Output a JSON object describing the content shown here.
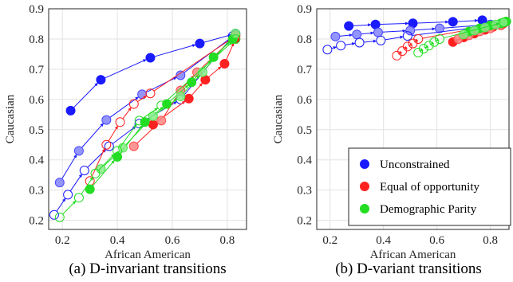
{
  "figure": {
    "colors": {
      "unconstrained": "#1a1aff",
      "equal_opportunity": "#ff2020",
      "demographic_parity": "#22dd22"
    }
  },
  "chart_data": [
    {
      "type": "scatter",
      "caption": "(a) D-invariant transitions",
      "xlabel": "African American",
      "ylabel": "Caucasian",
      "xlim": [
        0.15,
        0.87
      ],
      "ylim": [
        0.17,
        0.9
      ],
      "xticks": [
        "0.2",
        "0.4",
        "0.6",
        "0.8"
      ],
      "yticks": [
        "0.2",
        "0.3",
        "0.4",
        "0.5",
        "0.6",
        "0.7",
        "0.8",
        "0.9"
      ],
      "grid": true,
      "legend": null,
      "series": [
        {
          "key": "unconstrained",
          "trajectories": [
            {
              "marker": "filled",
              "points": [
                [
                  0.23,
                  0.563
                ],
                [
                  0.34,
                  0.665
                ],
                [
                  0.52,
                  0.738
                ],
                [
                  0.7,
                  0.785
                ],
                [
                  0.83,
                  0.818
                ]
              ]
            },
            {
              "marker": "light",
              "points": [
                [
                  0.19,
                  0.325
                ],
                [
                  0.26,
                  0.43
                ],
                [
                  0.36,
                  0.532
                ],
                [
                  0.49,
                  0.617
                ],
                [
                  0.63,
                  0.68
                ],
                [
                  0.83,
                  0.815
                ]
              ]
            },
            {
              "marker": "hollow",
              "points": [
                [
                  0.17,
                  0.218
                ],
                [
                  0.22,
                  0.285
                ],
                [
                  0.28,
                  0.365
                ],
                [
                  0.37,
                  0.445
                ],
                [
                  0.48,
                  0.52
                ],
                [
                  0.63,
                  0.6
                ],
                [
                  0.82,
                  0.81
                ]
              ]
            }
          ]
        },
        {
          "key": "equal_opportunity",
          "trajectories": [
            {
              "marker": "filled",
              "points": [
                [
                  0.53,
                  0.517
                ],
                [
                  0.66,
                  0.603
                ],
                [
                  0.72,
                  0.665
                ],
                [
                  0.79,
                  0.718
                ],
                [
                  0.83,
                  0.8
                ]
              ]
            },
            {
              "marker": "light",
              "points": [
                [
                  0.46,
                  0.445
                ],
                [
                  0.56,
                  0.53
                ],
                [
                  0.63,
                  0.63
                ],
                [
                  0.69,
                  0.69
                ],
                [
                  0.83,
                  0.81
                ]
              ]
            },
            {
              "marker": "hollow",
              "points": [
                [
                  0.3,
                  0.33
                ],
                [
                  0.36,
                  0.45
                ],
                [
                  0.41,
                  0.525
                ],
                [
                  0.46,
                  0.585
                ],
                [
                  0.52,
                  0.62
                ],
                [
                  0.83,
                  0.81
                ]
              ]
            }
          ]
        },
        {
          "key": "demographic_parity",
          "trajectories": [
            {
              "marker": "filled",
              "points": [
                [
                  0.3,
                  0.303
                ],
                [
                  0.4,
                  0.41
                ],
                [
                  0.5,
                  0.525
                ],
                [
                  0.58,
                  0.585
                ],
                [
                  0.67,
                  0.657
                ],
                [
                  0.75,
                  0.74
                ],
                [
                  0.82,
                  0.8
                ]
              ]
            },
            {
              "marker": "light",
              "points": [
                [
                  0.34,
                  0.37
                ],
                [
                  0.42,
                  0.44
                ],
                [
                  0.53,
                  0.545
                ],
                [
                  0.63,
                  0.61
                ],
                [
                  0.71,
                  0.69
                ],
                [
                  0.83,
                  0.818
                ]
              ]
            },
            {
              "marker": "hollow",
              "points": [
                [
                  0.19,
                  0.21
                ],
                [
                  0.26,
                  0.275
                ],
                [
                  0.32,
                  0.355
                ],
                [
                  0.4,
                  0.43
                ],
                [
                  0.48,
                  0.53
                ],
                [
                  0.56,
                  0.58
                ],
                [
                  0.83,
                  0.8
                ]
              ]
            }
          ]
        }
      ]
    },
    {
      "type": "scatter",
      "caption": "(b) D-variant transitions",
      "xlabel": "African American",
      "ylabel": "Caucasian",
      "xlim": [
        0.15,
        0.87
      ],
      "ylim": [
        0.17,
        0.9
      ],
      "xticks": [
        "0.2",
        "0.4",
        "0.6",
        "0.8"
      ],
      "yticks": [
        "0.2",
        "0.3",
        "0.4",
        "0.5",
        "0.6",
        "0.7",
        "0.8",
        "0.9"
      ],
      "grid": true,
      "legend": {
        "placement": "bottom-right",
        "entries": [
          {
            "key": "unconstrained",
            "label": "Unconstrained"
          },
          {
            "key": "equal_opportunity",
            "label": "Equal of opportunity"
          },
          {
            "key": "demographic_parity",
            "label": "Demographic Parity"
          }
        ]
      },
      "series": [
        {
          "key": "unconstrained",
          "trajectories": [
            {
              "marker": "filled",
              "points": [
                [
                  0.27,
                  0.843
                ],
                [
                  0.37,
                  0.848
                ],
                [
                  0.51,
                  0.852
                ],
                [
                  0.66,
                  0.857
                ],
                [
                  0.77,
                  0.862
                ]
              ]
            },
            {
              "marker": "light",
              "points": [
                [
                  0.22,
                  0.808
                ],
                [
                  0.3,
                  0.815
                ],
                [
                  0.38,
                  0.822
                ],
                [
                  0.5,
                  0.828
                ],
                [
                  0.61,
                  0.835
                ],
                [
                  0.8,
                  0.848
                ]
              ]
            },
            {
              "marker": "hollow",
              "points": [
                [
                  0.19,
                  0.765
                ],
                [
                  0.24,
                  0.778
                ],
                [
                  0.31,
                  0.788
                ],
                [
                  0.39,
                  0.795
                ],
                [
                  0.49,
                  0.81
                ],
                [
                  0.81,
                  0.845
                ]
              ]
            }
          ]
        },
        {
          "key": "equal_opportunity",
          "trajectories": [
            {
              "marker": "filled",
              "points": [
                [
                  0.66,
                  0.79
                ],
                [
                  0.7,
                  0.805
                ],
                [
                  0.74,
                  0.818
                ],
                [
                  0.78,
                  0.83
                ],
                [
                  0.81,
                  0.84
                ],
                [
                  0.84,
                  0.848
                ]
              ]
            },
            {
              "marker": "light",
              "points": [
                [
                  0.68,
                  0.8
                ],
                [
                  0.72,
                  0.812
                ],
                [
                  0.76,
                  0.825
                ],
                [
                  0.8,
                  0.835
                ],
                [
                  0.84,
                  0.845
                ]
              ]
            },
            {
              "marker": "hollow",
              "points": [
                [
                  0.45,
                  0.745
                ],
                [
                  0.47,
                  0.76
                ],
                [
                  0.49,
                  0.775
                ],
                [
                  0.51,
                  0.785
                ],
                [
                  0.53,
                  0.8
                ],
                [
                  0.85,
                  0.852
                ]
              ]
            }
          ]
        },
        {
          "key": "demographic_parity",
          "trajectories": [
            {
              "marker": "filled",
              "points": [
                [
                  0.72,
                  0.825
                ],
                [
                  0.76,
                  0.835
                ],
                [
                  0.8,
                  0.845
                ],
                [
                  0.84,
                  0.852
                ],
                [
                  0.86,
                  0.858
                ]
              ]
            },
            {
              "marker": "light",
              "points": [
                [
                  0.7,
                  0.815
                ],
                [
                  0.74,
                  0.828
                ],
                [
                  0.78,
                  0.838
                ],
                [
                  0.82,
                  0.848
                ],
                [
                  0.85,
                  0.855
                ]
              ]
            },
            {
              "marker": "hollow",
              "points": [
                [
                  0.53,
                  0.755
                ],
                [
                  0.55,
                  0.768
                ],
                [
                  0.57,
                  0.778
                ],
                [
                  0.59,
                  0.79
                ],
                [
                  0.61,
                  0.8
                ],
                [
                  0.85,
                  0.855
                ]
              ]
            }
          ]
        }
      ]
    }
  ]
}
